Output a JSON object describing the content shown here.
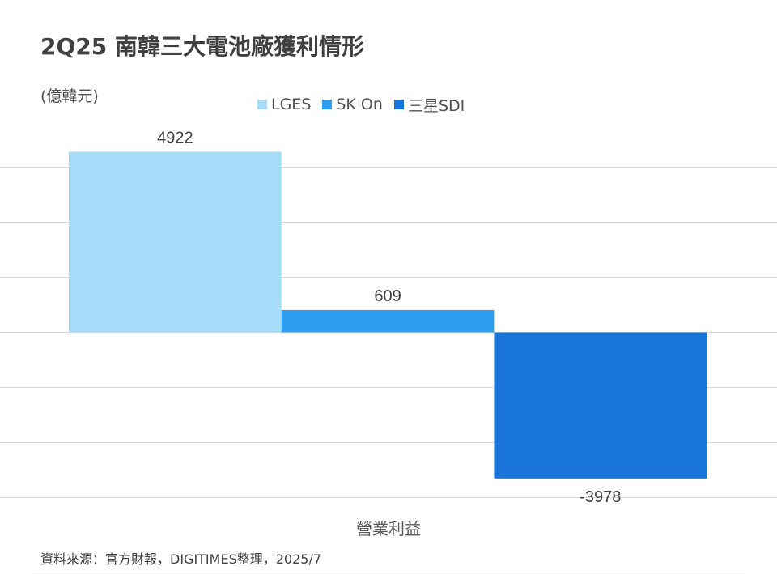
{
  "title": "2Q25 南韓三大電池廠獲利情形",
  "unit_label": "(億韓元)",
  "footer": "資料來源：官方財報，DIGITIMES整理，2025/7",
  "colors": {
    "LGES": "#a6dcf8",
    "SK On": "#2e9ef0",
    "三星SDI": "#1a75d8",
    "grid": "#d9d9d9",
    "text": "#404040"
  },
  "chart_data": {
    "type": "bar",
    "categories": [
      "營業利益"
    ],
    "xlabel": "營業利益",
    "ylabel": "",
    "ylim": [
      -6000,
      6000
    ],
    "grid": true,
    "legend_position": "top",
    "series": [
      {
        "name": "LGES",
        "values": [
          4922
        ]
      },
      {
        "name": "SK On",
        "values": [
          609
        ]
      },
      {
        "name": "三星SDI",
        "values": [
          -3978
        ]
      }
    ]
  }
}
